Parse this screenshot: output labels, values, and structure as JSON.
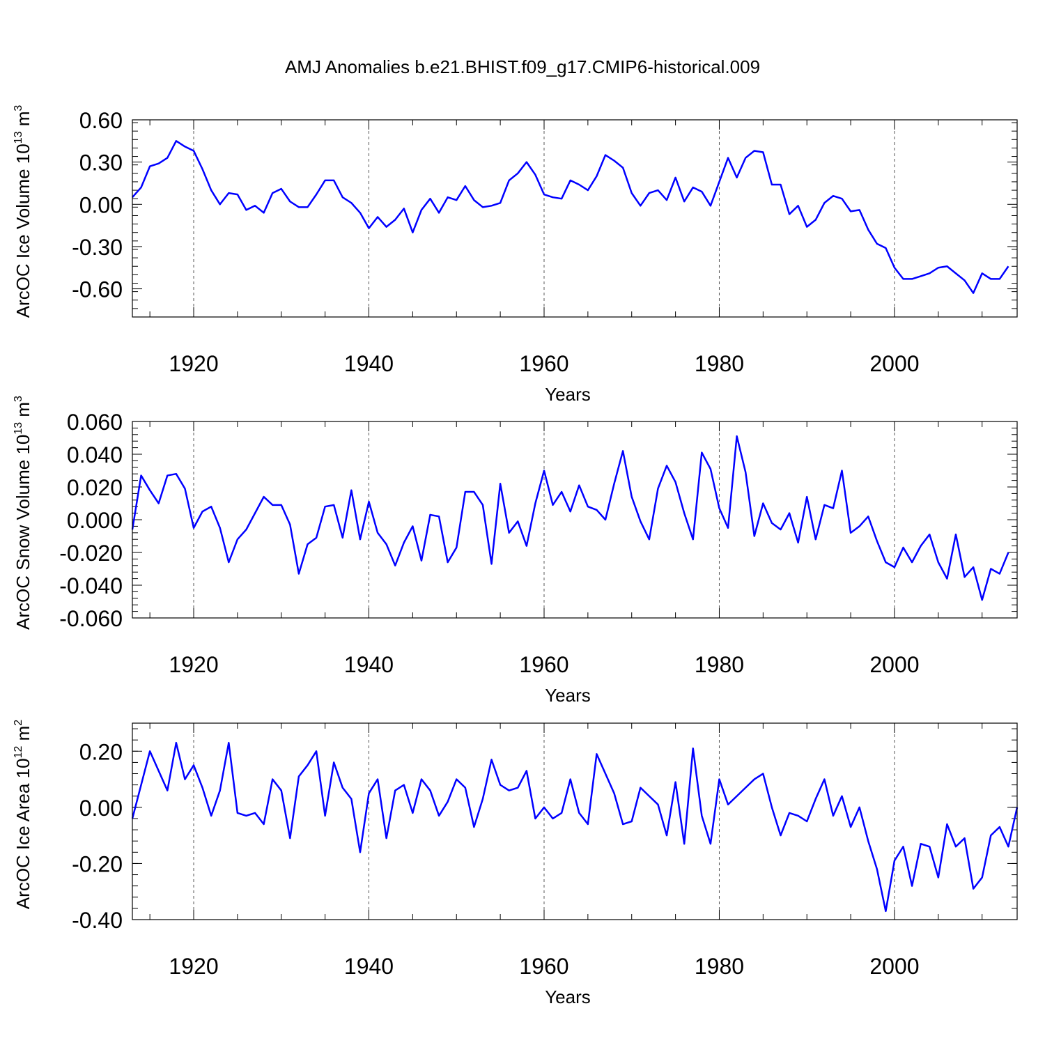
{
  "title": "AMJ Anomalies b.e21.BHIST.f09_g17.CMIP6-historical.009",
  "chart_data": [
    {
      "type": "line",
      "ylabel_main": "ArcOC Ice Volume 10",
      "ylabel_exp": "13",
      "ylabel_unit": " m",
      "ylabel_unit_exp": "3",
      "xlabel": "Years",
      "xlim": [
        1913,
        2014
      ],
      "ylim": [
        -0.8,
        0.6
      ],
      "yticks": [
        -0.6,
        -0.3,
        0.0,
        0.3,
        0.6
      ],
      "ytick_labels": [
        "-0.60",
        "-0.30",
        "0.00",
        "0.30",
        "0.60"
      ],
      "xticks": [
        1920,
        1940,
        1960,
        1980,
        2000
      ],
      "xtick_labels": [
        "1920",
        "1940",
        "1960",
        "1980",
        "2000"
      ],
      "series": [
        {
          "name": "ice volume",
          "color": "#0000ff",
          "x_start": 1913,
          "values": [
            0.05,
            0.12,
            0.27,
            0.29,
            0.33,
            0.45,
            0.41,
            0.38,
            0.25,
            0.1,
            0.0,
            0.08,
            0.07,
            -0.04,
            -0.01,
            -0.06,
            0.08,
            0.11,
            0.02,
            -0.02,
            -0.02,
            0.07,
            0.17,
            0.17,
            0.05,
            0.01,
            -0.06,
            -0.17,
            -0.09,
            -0.16,
            -0.11,
            -0.03,
            -0.2,
            -0.04,
            0.04,
            -0.06,
            0.05,
            0.03,
            0.13,
            0.03,
            -0.02,
            -0.01,
            0.01,
            0.17,
            0.22,
            0.3,
            0.21,
            0.07,
            0.05,
            0.04,
            0.17,
            0.14,
            0.1,
            0.2,
            0.35,
            0.31,
            0.26,
            0.08,
            -0.01,
            0.08,
            0.1,
            0.03,
            0.19,
            0.02,
            0.12,
            0.09,
            -0.01,
            0.16,
            0.33,
            0.19,
            0.33,
            0.38,
            0.37,
            0.14,
            0.14,
            -0.07,
            -0.01,
            -0.16,
            -0.11,
            0.01,
            0.06,
            0.04,
            -0.05,
            -0.04,
            -0.18,
            -0.28,
            -0.31,
            -0.45,
            -0.53,
            -0.53,
            -0.51,
            -0.49,
            -0.45,
            -0.44,
            -0.49,
            -0.54,
            -0.63,
            -0.49,
            -0.53,
            -0.53,
            -0.44
          ]
        }
      ]
    },
    {
      "type": "line",
      "ylabel_main": "ArcOC Snow Volume 10",
      "ylabel_exp": "13",
      "ylabel_unit": " m",
      "ylabel_unit_exp": "3",
      "xlabel": "Years",
      "xlim": [
        1913,
        2014
      ],
      "ylim": [
        -0.06,
        0.06
      ],
      "yticks": [
        -0.06,
        -0.04,
        -0.02,
        0.0,
        0.02,
        0.04,
        0.06
      ],
      "ytick_labels": [
        "-0.060",
        "-0.040",
        "-0.020",
        "0.000",
        "0.020",
        "0.040",
        "0.060"
      ],
      "xticks": [
        1920,
        1940,
        1960,
        1980,
        2000
      ],
      "xtick_labels": [
        "1920",
        "1940",
        "1960",
        "1980",
        "2000"
      ],
      "series": [
        {
          "name": "snow volume",
          "color": "#0000ff",
          "x_start": 1913,
          "values": [
            -0.006,
            0.027,
            0.018,
            0.01,
            0.027,
            0.028,
            0.019,
            -0.005,
            0.005,
            0.008,
            -0.005,
            -0.026,
            -0.012,
            -0.006,
            0.004,
            0.014,
            0.009,
            0.009,
            -0.003,
            -0.033,
            -0.015,
            -0.011,
            0.008,
            0.009,
            -0.011,
            0.018,
            -0.012,
            0.011,
            -0.008,
            -0.015,
            -0.028,
            -0.014,
            -0.004,
            -0.025,
            0.003,
            0.002,
            -0.026,
            -0.017,
            0.017,
            0.017,
            0.009,
            -0.027,
            0.022,
            -0.008,
            -0.001,
            -0.016,
            0.01,
            0.03,
            0.009,
            0.017,
            0.005,
            0.021,
            0.008,
            0.006,
            0.0,
            0.022,
            0.042,
            0.014,
            -0.001,
            -0.012,
            0.019,
            0.033,
            0.023,
            0.004,
            -0.012,
            0.041,
            0.031,
            0.007,
            -0.005,
            0.051,
            0.029,
            -0.01,
            0.01,
            -0.002,
            -0.006,
            0.004,
            -0.014,
            0.014,
            -0.012,
            0.009,
            0.007,
            0.03,
            -0.008,
            -0.004,
            0.002,
            -0.013,
            -0.026,
            -0.029,
            -0.017,
            -0.026,
            -0.016,
            -0.009,
            -0.026,
            -0.036,
            -0.009,
            -0.035,
            -0.029,
            -0.049,
            -0.03,
            -0.033,
            -0.02
          ]
        }
      ]
    },
    {
      "type": "line",
      "ylabel_main": "ArcOC Ice Area 10",
      "ylabel_exp": "12",
      "ylabel_unit": " m",
      "ylabel_unit_exp": "2",
      "xlabel": "Years",
      "xlim": [
        1913,
        2014
      ],
      "ylim": [
        -0.4,
        0.3
      ],
      "yticks": [
        -0.4,
        -0.2,
        0.0,
        0.2
      ],
      "ytick_labels": [
        "-0.40",
        "-0.20",
        "0.00",
        "0.20"
      ],
      "xticks": [
        1920,
        1940,
        1960,
        1980,
        2000
      ],
      "xtick_labels": [
        "1920",
        "1940",
        "1960",
        "1980",
        "2000"
      ],
      "series": [
        {
          "name": "ice area",
          "color": "#0000ff",
          "x_start": 1913,
          "values": [
            -0.04,
            0.08,
            0.2,
            0.13,
            0.06,
            0.23,
            0.1,
            0.15,
            0.07,
            -0.03,
            0.06,
            0.23,
            -0.02,
            -0.03,
            -0.02,
            -0.06,
            0.1,
            0.06,
            -0.11,
            0.11,
            0.15,
            0.2,
            -0.03,
            0.16,
            0.07,
            0.03,
            -0.16,
            0.05,
            0.1,
            -0.11,
            0.06,
            0.08,
            -0.02,
            0.1,
            0.06,
            -0.03,
            0.02,
            0.1,
            0.07,
            -0.07,
            0.03,
            0.17,
            0.08,
            0.06,
            0.07,
            0.13,
            -0.04,
            0.0,
            -0.04,
            -0.02,
            0.1,
            -0.02,
            -0.06,
            0.19,
            0.12,
            0.05,
            -0.06,
            -0.05,
            0.07,
            0.04,
            0.01,
            -0.1,
            0.09,
            -0.13,
            0.21,
            -0.03,
            -0.13,
            0.1,
            0.01,
            0.04,
            0.07,
            0.1,
            0.12,
            0.0,
            -0.1,
            -0.02,
            -0.03,
            -0.05,
            0.03,
            0.1,
            -0.03,
            0.04,
            -0.07,
            0.0,
            -0.12,
            -0.22,
            -0.37,
            -0.19,
            -0.14,
            -0.28,
            -0.13,
            -0.14,
            -0.25,
            -0.06,
            -0.14,
            -0.11,
            -0.29,
            -0.25,
            -0.1,
            -0.07,
            -0.14,
            0.0
          ]
        }
      ]
    }
  ]
}
